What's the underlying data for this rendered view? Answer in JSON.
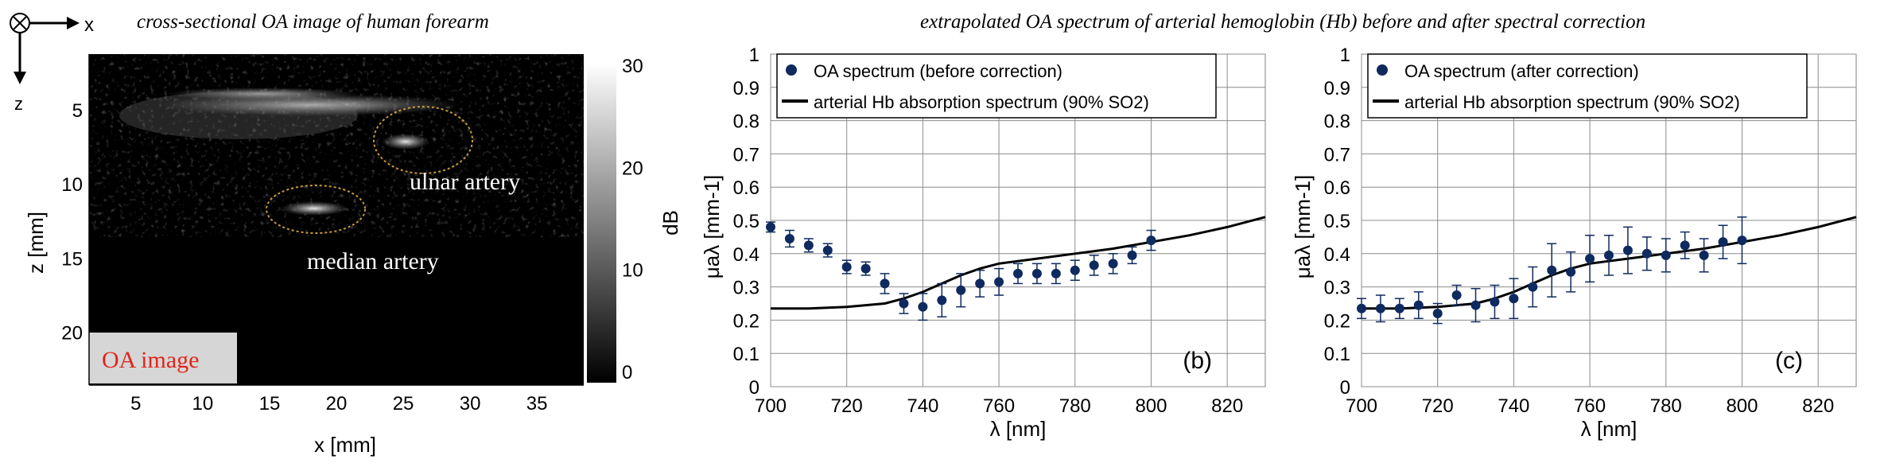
{
  "headings": {
    "left": "cross-sectional OA image of human forearm",
    "right": "extrapolated OA spectrum of arterial hemoglobin (Hb) before and after spectral correction"
  },
  "orientation": {
    "x": "x",
    "z": "z"
  },
  "colors": {
    "marker": "#0f2a5e",
    "line": "#000000",
    "ellipse": "#c89a3a",
    "oa_label": "#e0261c"
  },
  "chart_data": [
    {
      "type": "image",
      "xlabel": "x [mm]",
      "ylabel": "z [mm]",
      "xticks": [
        "5",
        "10",
        "15",
        "20",
        "25",
        "30",
        "35"
      ],
      "yticks": [
        "5",
        "10",
        "15",
        "20"
      ],
      "xlim": [
        1.5,
        38.5
      ],
      "ylim": [
        1.2,
        23.5
      ],
      "colorbar": {
        "label": "dB",
        "ticks": [
          "0",
          "10",
          "20",
          "30"
        ],
        "range": [
          0,
          30
        ]
      },
      "annotations": {
        "ulnar": "ulnar artery",
        "median": "median artery",
        "badge": "OA image"
      }
    },
    {
      "type": "scatter",
      "panel": "(b)",
      "xlabel": "λ [nm]",
      "ylabel": "μaλ [mm-1]",
      "xlim": [
        700,
        830
      ],
      "ylim": [
        0,
        1
      ],
      "xticks": [
        "700",
        "720",
        "740",
        "760",
        "780",
        "800",
        "820"
      ],
      "yticks": [
        "0",
        "0.1",
        "0.2",
        "0.3",
        "0.4",
        "0.5",
        "0.6",
        "0.7",
        "0.8",
        "0.9",
        "1"
      ],
      "grid": true,
      "legend_position": "top-left",
      "legend": {
        "points": "OA spectrum (before correction)",
        "line": "arterial Hb absorption spectrum (90% SO2)"
      },
      "points": {
        "x": [
          700,
          705,
          710,
          715,
          720,
          725,
          730,
          735,
          740,
          745,
          750,
          755,
          760,
          765,
          770,
          775,
          780,
          785,
          790,
          795,
          800
        ],
        "y": [
          0.48,
          0.445,
          0.425,
          0.41,
          0.36,
          0.355,
          0.31,
          0.25,
          0.24,
          0.26,
          0.29,
          0.31,
          0.315,
          0.34,
          0.34,
          0.34,
          0.35,
          0.365,
          0.37,
          0.395,
          0.44
        ],
        "err": [
          0.015,
          0.025,
          0.02,
          0.02,
          0.02,
          0.02,
          0.03,
          0.03,
          0.04,
          0.05,
          0.05,
          0.04,
          0.04,
          0.03,
          0.03,
          0.03,
          0.03,
          0.03,
          0.03,
          0.025,
          0.03
        ]
      },
      "line": {
        "x": [
          700,
          710,
          720,
          730,
          735,
          740,
          745,
          750,
          755,
          760,
          770,
          780,
          790,
          800,
          810,
          820,
          830
        ],
        "y": [
          0.235,
          0.235,
          0.24,
          0.25,
          0.265,
          0.285,
          0.31,
          0.335,
          0.355,
          0.37,
          0.385,
          0.4,
          0.415,
          0.435,
          0.455,
          0.48,
          0.51
        ]
      }
    },
    {
      "type": "scatter",
      "panel": "(c)",
      "xlabel": "λ [nm]",
      "ylabel": "μaλ [mm-1]",
      "xlim": [
        700,
        830
      ],
      "ylim": [
        0,
        1
      ],
      "xticks": [
        "700",
        "720",
        "740",
        "760",
        "780",
        "800",
        "820"
      ],
      "yticks": [
        "0",
        "0.1",
        "0.2",
        "0.3",
        "0.4",
        "0.5",
        "0.6",
        "0.7",
        "0.8",
        "0.9",
        "1"
      ],
      "grid": true,
      "legend_position": "top-left",
      "legend": {
        "points": "OA spectrum (after correction)",
        "line": "arterial Hb absorption spectrum (90% SO2)"
      },
      "points": {
        "x": [
          700,
          705,
          710,
          715,
          720,
          725,
          730,
          735,
          740,
          745,
          750,
          755,
          760,
          765,
          770,
          775,
          780,
          785,
          790,
          795,
          800
        ],
        "y": [
          0.235,
          0.235,
          0.235,
          0.245,
          0.22,
          0.275,
          0.245,
          0.255,
          0.265,
          0.3,
          0.35,
          0.345,
          0.385,
          0.395,
          0.41,
          0.4,
          0.395,
          0.425,
          0.395,
          0.435,
          0.44
        ],
        "err": [
          0.03,
          0.04,
          0.03,
          0.04,
          0.03,
          0.03,
          0.05,
          0.05,
          0.06,
          0.06,
          0.08,
          0.06,
          0.07,
          0.06,
          0.07,
          0.05,
          0.05,
          0.04,
          0.05,
          0.05,
          0.07
        ]
      },
      "line": {
        "x": [
          700,
          710,
          720,
          730,
          735,
          740,
          745,
          750,
          755,
          760,
          770,
          780,
          790,
          800,
          810,
          820,
          830
        ],
        "y": [
          0.235,
          0.235,
          0.24,
          0.25,
          0.265,
          0.285,
          0.31,
          0.335,
          0.355,
          0.37,
          0.385,
          0.4,
          0.415,
          0.435,
          0.455,
          0.48,
          0.51
        ]
      }
    }
  ]
}
